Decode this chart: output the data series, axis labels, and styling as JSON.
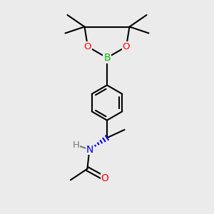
{
  "background_color": "#ebebeb",
  "atom_colors": {
    "B": "#00bb00",
    "O": "#ff0000",
    "N": "#0000ee",
    "C": "#000000",
    "H": "#777777"
  },
  "bond_color": "#000000",
  "line_width": 1.5,
  "font_size": 9.5
}
